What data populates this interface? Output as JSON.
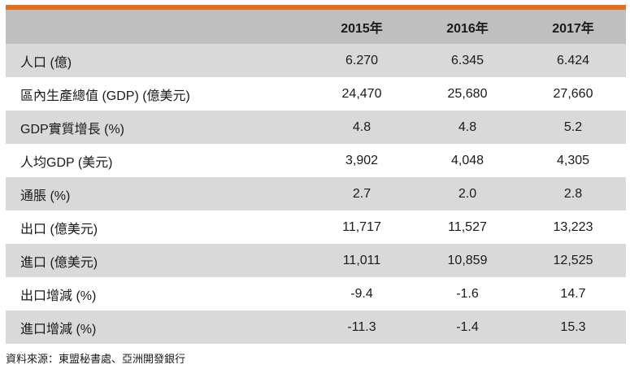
{
  "colors": {
    "accent": "#e0701c",
    "header_bg": "#bfbfbf",
    "row_shaded": "#d9d9d9",
    "row_plain": "#ffffff"
  },
  "table": {
    "headers": [
      "",
      "2015年",
      "2016年",
      "2017年"
    ],
    "rows": [
      {
        "label": "人口 (億)",
        "values": [
          "6.270",
          "6.345",
          "6.424"
        ]
      },
      {
        "label": "區內生產總值 (GDP) (億美元)",
        "values": [
          "24,470",
          "25,680",
          "27,660"
        ]
      },
      {
        "label": "GDP實質增長 (%)",
        "values": [
          "4.8",
          "4.8",
          "5.2"
        ]
      },
      {
        "label": "人均GDP (美元)",
        "values": [
          "3,902",
          "4,048",
          "4,305"
        ]
      },
      {
        "label": "通脹 (%)",
        "values": [
          "2.7",
          "2.0",
          "2.8"
        ]
      },
      {
        "label": "出口 (億美元)",
        "values": [
          "11,717",
          "11,527",
          "13,223"
        ]
      },
      {
        "label": "進口 (億美元)",
        "values": [
          "11,011",
          "10,859",
          "12,525"
        ]
      },
      {
        "label": "出口增減 (%)",
        "values": [
          "-9.4",
          "-1.6",
          "14.7"
        ]
      },
      {
        "label": "進口增減 (%)",
        "values": [
          "-11.3",
          "-1.4",
          "15.3"
        ]
      }
    ]
  },
  "source": "資料來源：東盟秘書處、亞洲開發銀行"
}
